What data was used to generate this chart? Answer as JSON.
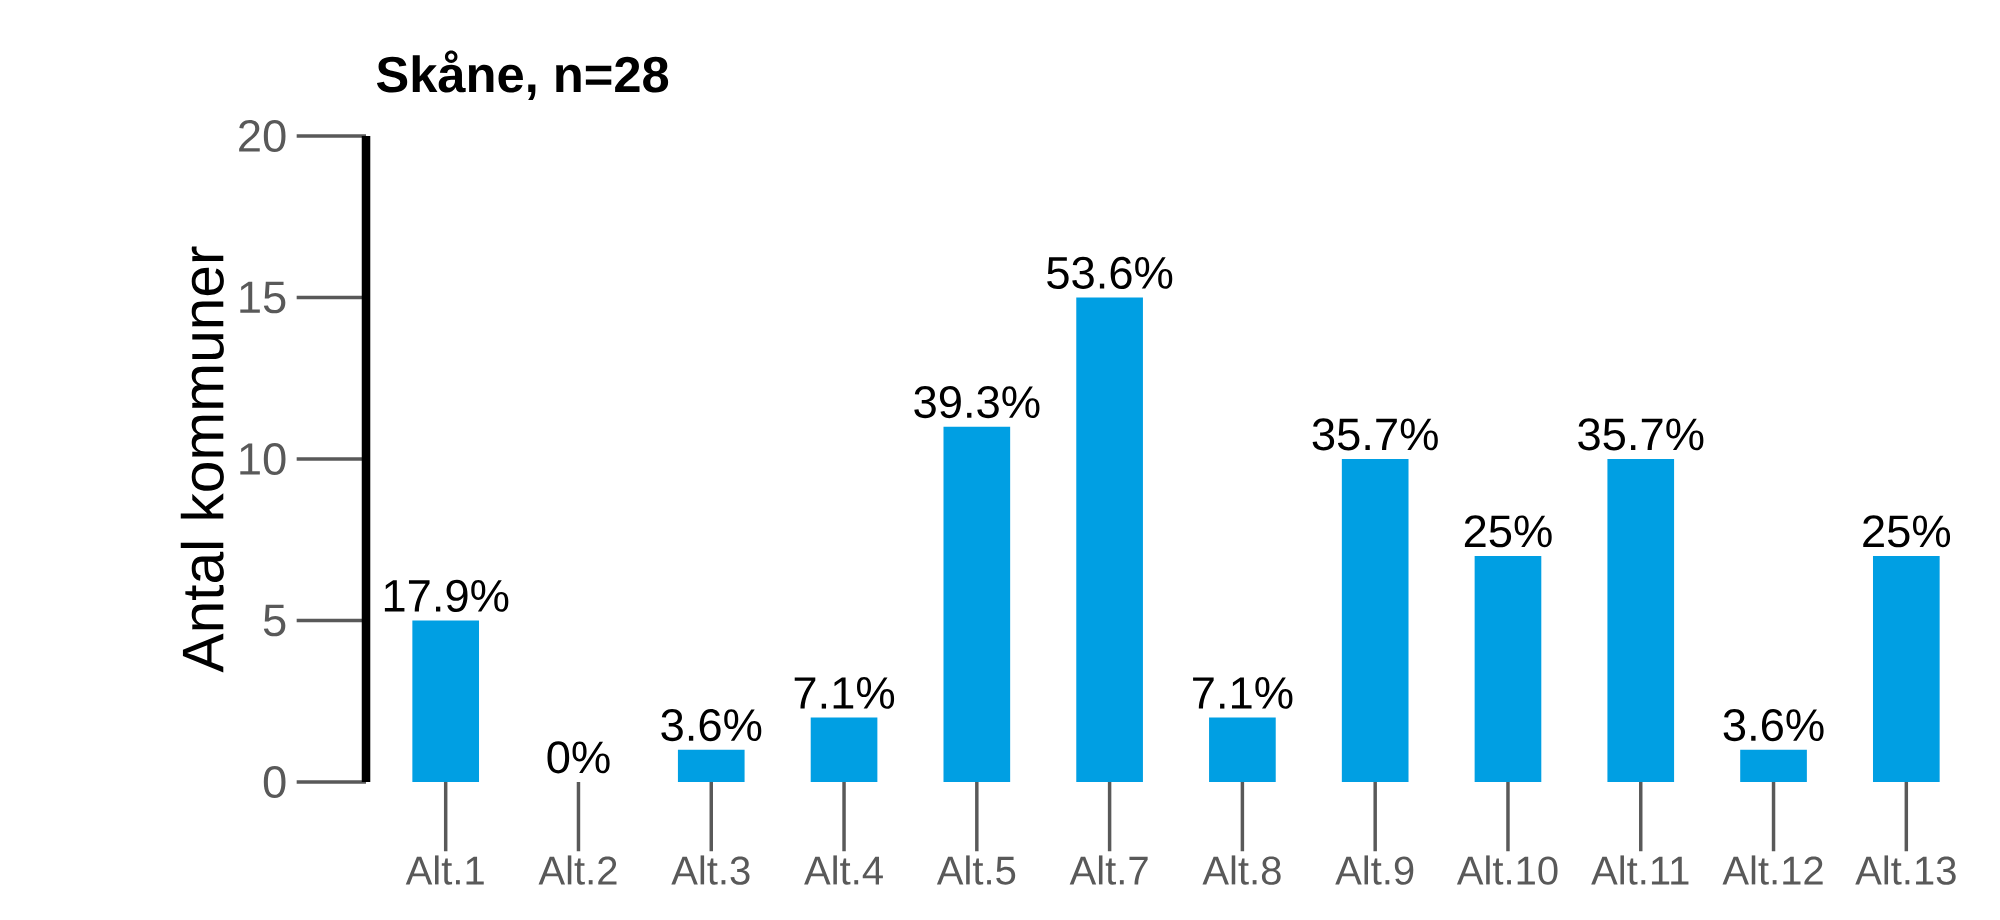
{
  "chart_data": {
    "type": "bar",
    "title": "Skåne, n=28",
    "ylabel": "Antal kommuner",
    "categories": [
      "Alt.1",
      "Alt.2",
      "Alt.3",
      "Alt.4",
      "Alt.5",
      "Alt.7",
      "Alt.8",
      "Alt.9",
      "Alt.10",
      "Alt.11",
      "Alt.12",
      "Alt.13"
    ],
    "values": [
      5,
      0,
      1,
      2,
      11,
      15,
      2,
      10,
      7,
      10,
      1,
      7
    ],
    "annotations": [
      {
        "text": "17.9%",
        "x": "Alt.1",
        "y": 5
      },
      {
        "text": "0%",
        "x": "Alt.2",
        "y": 0
      },
      {
        "text": "3.6%",
        "x": "Alt.3",
        "y": 1
      },
      {
        "text": "7.1%",
        "x": "Alt.4",
        "y": 2
      },
      {
        "text": "39.3%",
        "x": "Alt.5",
        "y": 11
      },
      {
        "text": "53.6%",
        "x": "Alt.7",
        "y": 15
      },
      {
        "text": "7.1%",
        "x": "Alt.8",
        "y": 2
      },
      {
        "text": "35.7%",
        "x": "Alt.9",
        "y": 10
      },
      {
        "text": "25%",
        "x": "Alt.10",
        "y": 7
      },
      {
        "text": "35.7%",
        "x": "Alt.11",
        "y": 10
      },
      {
        "text": "3.6%",
        "x": "Alt.12",
        "y": 1
      },
      {
        "text": "25%",
        "x": "Alt.13",
        "y": 7
      }
    ],
    "color": "#009fe3",
    "ylim": [
      0,
      20
    ],
    "yticks": [
      0,
      5,
      10,
      15,
      20
    ]
  }
}
